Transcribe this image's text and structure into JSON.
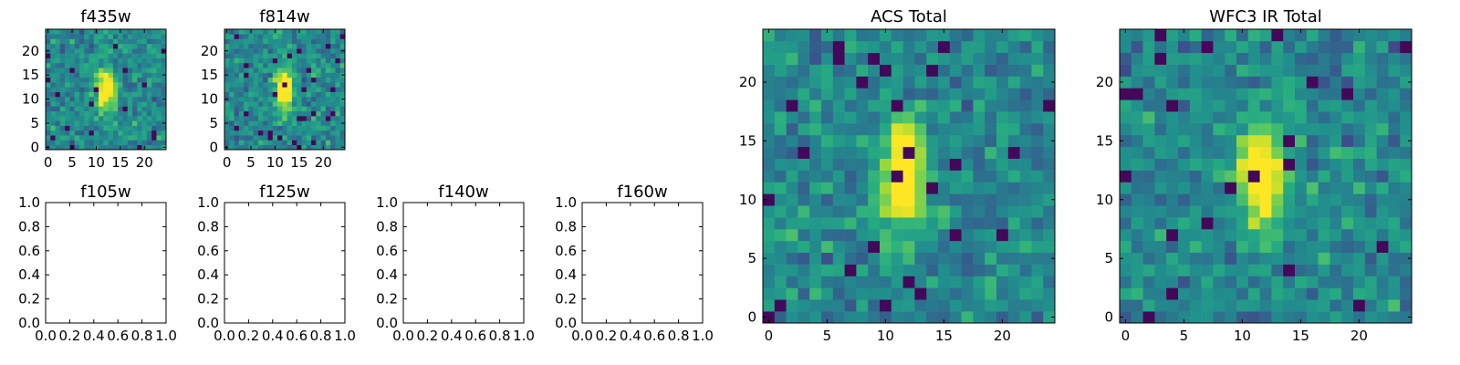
{
  "chart_data": [
    {
      "type": "heatmap",
      "title": "f435w",
      "grid": 25,
      "seed": 11,
      "colormap": "viridis",
      "source_center": [
        12,
        12
      ],
      "source_peak": 1.0,
      "xlim": [
        -0.5,
        24.5
      ],
      "ylim": [
        -0.5,
        24.5
      ],
      "xticks": [
        0,
        5,
        10,
        15,
        20
      ],
      "yticks": [
        0,
        5,
        10,
        15,
        20
      ]
    },
    {
      "type": "heatmap",
      "title": "f814w",
      "grid": 25,
      "seed": 23,
      "colormap": "viridis",
      "source_center": [
        12,
        12
      ],
      "source_peak": 1.0,
      "xlim": [
        -0.5,
        24.5
      ],
      "ylim": [
        -0.5,
        24.5
      ],
      "xticks": [
        0,
        5,
        10,
        15,
        20
      ],
      "yticks": [
        0,
        5,
        10,
        15,
        20
      ]
    },
    {
      "type": "empty",
      "title": "f105w",
      "xlim": [
        0,
        1
      ],
      "ylim": [
        0,
        1
      ],
      "xticks": [
        "0.0",
        "0.2",
        "0.4",
        "0.6",
        "0.8",
        "1.0"
      ],
      "yticks": [
        "0.0",
        "0.2",
        "0.4",
        "0.6",
        "0.8",
        "1.0"
      ]
    },
    {
      "type": "empty",
      "title": "f125w",
      "xlim": [
        0,
        1
      ],
      "ylim": [
        0,
        1
      ],
      "xticks": [
        "0.0",
        "0.2",
        "0.4",
        "0.6",
        "0.8",
        "1.0"
      ],
      "yticks": [
        "0.0",
        "0.2",
        "0.4",
        "0.6",
        "0.8",
        "1.0"
      ]
    },
    {
      "type": "empty",
      "title": "f140w",
      "xlim": [
        0,
        1
      ],
      "ylim": [
        0,
        1
      ],
      "xticks": [
        "0.0",
        "0.2",
        "0.4",
        "0.6",
        "0.8",
        "1.0"
      ],
      "yticks": [
        "0.0",
        "0.2",
        "0.4",
        "0.6",
        "0.8",
        "1.0"
      ]
    },
    {
      "type": "empty",
      "title": "f160w",
      "xlim": [
        0,
        1
      ],
      "ylim": [
        0,
        1
      ],
      "xticks": [
        "0.0",
        "0.2",
        "0.4",
        "0.6",
        "0.8",
        "1.0"
      ],
      "yticks": [
        "0.0",
        "0.2",
        "0.4",
        "0.6",
        "0.8",
        "1.0"
      ]
    },
    {
      "type": "heatmap",
      "title": "ACS Total",
      "grid": 25,
      "seed": 37,
      "colormap": "viridis",
      "source_center": [
        11.5,
        12
      ],
      "source_peak": 1.0,
      "xlim": [
        -0.5,
        24.5
      ],
      "ylim": [
        -0.5,
        24.5
      ],
      "xticks": [
        0,
        5,
        10,
        15,
        20
      ],
      "yticks": [
        0,
        5,
        10,
        15,
        20
      ]
    },
    {
      "type": "heatmap",
      "title": "WFC3 IR Total",
      "grid": 25,
      "seed": 53,
      "colormap": "viridis",
      "source_center": [
        11.5,
        12
      ],
      "source_peak": 1.0,
      "xlim": [
        -0.5,
        24.5
      ],
      "ylim": [
        -0.5,
        24.5
      ],
      "xticks": [
        0,
        5,
        10,
        15,
        20
      ],
      "yticks": [
        0,
        5,
        10,
        15,
        20
      ]
    }
  ]
}
